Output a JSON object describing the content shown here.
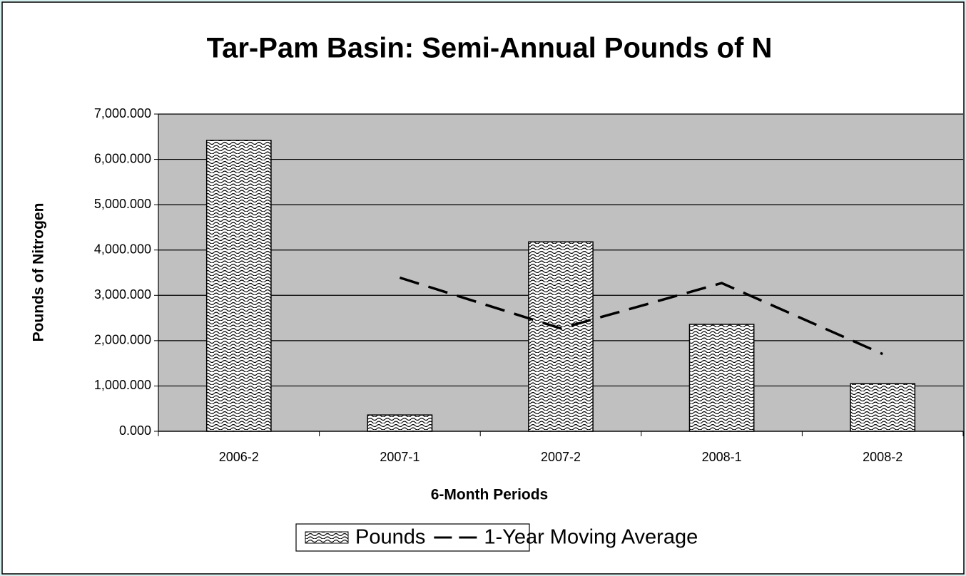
{
  "chart_data": {
    "type": "bar",
    "title": "Tar-Pam Basin: Semi-Annual Pounds of N",
    "x_label": "6-Month Periods",
    "y_label": "Pounds of Nitrogen",
    "categories": [
      "2006-2",
      "2007-1",
      "2007-2",
      "2008-1",
      "2008-2"
    ],
    "series": [
      {
        "name": "Pounds",
        "type": "bar",
        "color": "#000000",
        "values": [
          6420,
          360,
          4180,
          2360,
          1050
        ]
      },
      {
        "name": "1-Year Moving Average",
        "type": "line",
        "color": "#000000",
        "values": [
          null,
          3390,
          2270,
          3270,
          1705
        ]
      }
    ],
    "ylim": [
      0,
      7000
    ],
    "yticks": [
      {
        "value": 0,
        "label": "0.000"
      },
      {
        "value": 1000,
        "label": "1,000.000"
      },
      {
        "value": 2000,
        "label": "2,000.000"
      },
      {
        "value": 3000,
        "label": "3,000.000"
      },
      {
        "value": 4000,
        "label": "4,000.000"
      },
      {
        "value": 5000,
        "label": "5,000.000"
      },
      {
        "value": 6000,
        "label": "6,000.000"
      },
      {
        "value": 7000,
        "label": "7,000.000"
      }
    ],
    "grid": true,
    "legend": "bottom"
  }
}
